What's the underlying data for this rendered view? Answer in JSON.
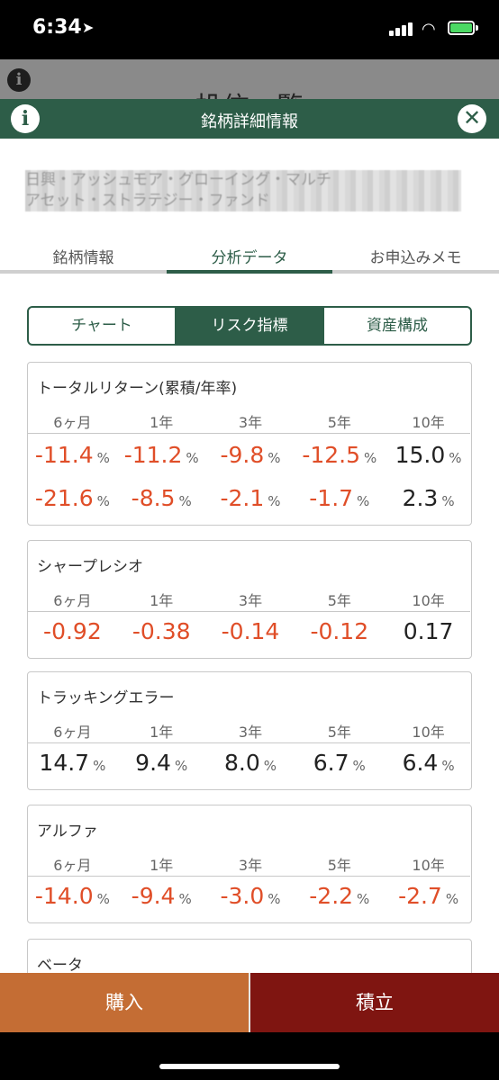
{
  "status": {
    "time": "6:34"
  },
  "behind": {
    "title": "投信一覧"
  },
  "header": {
    "title": "銘柄詳細情報"
  },
  "fund_name": {
    "line1": "日興・アッシュモア・グローイング・マルチ",
    "line2": "アセット・ストラテジー・ファンド"
  },
  "tabs": [
    "銘柄情報",
    "分析データ",
    "お申込みメモ"
  ],
  "segments": [
    "チャート",
    "リスク指標",
    "資産構成"
  ],
  "periods": [
    "6ヶ月",
    "1年",
    "3年",
    "5年",
    "10年"
  ],
  "unit": "%",
  "cards": {
    "total_return": {
      "title": "トータルリターン(累積/年率)",
      "cumulative": [
        "-11.4",
        "-11.2",
        "-9.8",
        "-12.5",
        "15.0"
      ],
      "annual": [
        "-21.6",
        "-8.5",
        "-2.1",
        "-1.7",
        "2.3"
      ]
    },
    "sharpe": {
      "title": "シャープレシオ",
      "values": [
        "-0.92",
        "-0.38",
        "-0.14",
        "-0.12",
        "0.17"
      ]
    },
    "tracking": {
      "title": "トラッキングエラー",
      "values": [
        "14.7",
        "9.4",
        "8.0",
        "6.7",
        "6.4"
      ]
    },
    "alpha": {
      "title": "アルファ",
      "values": [
        "-14.0",
        "-9.4",
        "-3.0",
        "-2.2",
        "-2.7"
      ]
    },
    "beta": {
      "title": "ベータ"
    }
  },
  "buttons": {
    "buy": "購入",
    "accumulate": "積立"
  },
  "colors": {
    "brand": "#2d5d48",
    "negative": "#e04e28",
    "buy": "#c46d34",
    "accumulate": "#7f1511"
  }
}
